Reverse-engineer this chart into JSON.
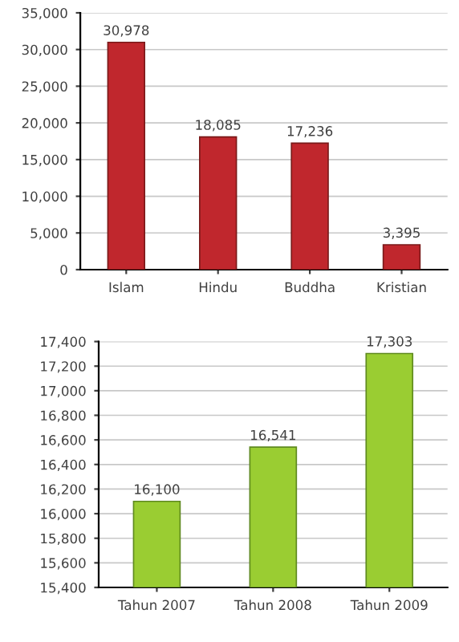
{
  "chart_data": [
    {
      "type": "bar",
      "categories": [
        "Islam",
        "Hindu",
        "Buddha",
        "Kristian"
      ],
      "values": [
        30978,
        18085,
        17236,
        3395
      ],
      "value_labels": [
        "30,978",
        "18,085",
        "17,236",
        "3,395"
      ],
      "color": "#c0272d",
      "ylim": [
        0,
        35000
      ],
      "yticks": [
        {
          "value": 0,
          "label": "0"
        },
        {
          "value": 5000,
          "label": "5,000"
        },
        {
          "value": 10000,
          "label": "10,000"
        },
        {
          "value": 15000,
          "label": "15,000"
        },
        {
          "value": 20000,
          "label": "20,000"
        },
        {
          "value": 25000,
          "label": "25,000"
        },
        {
          "value": 30000,
          "label": "30,000"
        },
        {
          "value": 35000,
          "label": "35,000"
        }
      ],
      "grid": "y"
    },
    {
      "type": "bar",
      "categories": [
        "Tahun 2007",
        "Tahun 2008",
        "Tahun 2009"
      ],
      "values": [
        16100,
        16541,
        17303
      ],
      "value_labels": [
        "16,100",
        "16,541",
        "17,303"
      ],
      "color": "#9acd32",
      "ylim": [
        15400,
        17400
      ],
      "yticks": [
        {
          "value": 15400,
          "label": "15,400"
        },
        {
          "value": 15600,
          "label": "15,600"
        },
        {
          "value": 15800,
          "label": "15,800"
        },
        {
          "value": 16000,
          "label": "16,000"
        },
        {
          "value": 16200,
          "label": "16,200"
        },
        {
          "value": 16400,
          "label": "16,400"
        },
        {
          "value": 16600,
          "label": "16,600"
        },
        {
          "value": 16800,
          "label": "16,800"
        },
        {
          "value": 17000,
          "label": "17,000"
        },
        {
          "value": 17200,
          "label": "17,200"
        },
        {
          "value": 17400,
          "label": "17,400"
        }
      ],
      "grid": "y"
    }
  ]
}
